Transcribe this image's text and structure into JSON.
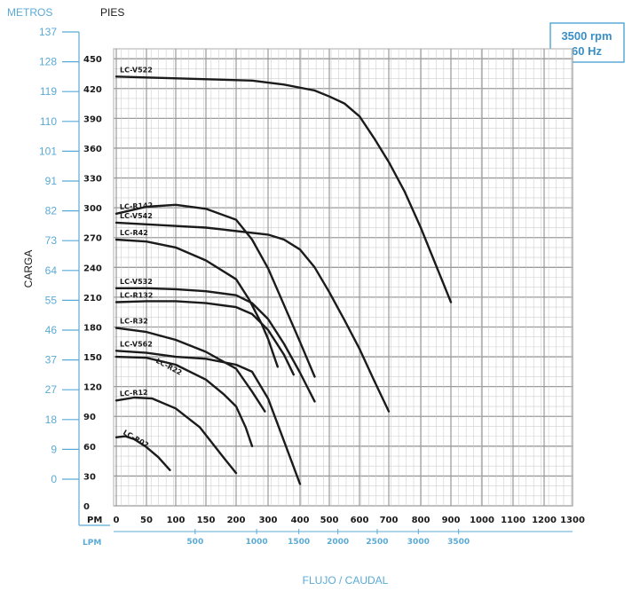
{
  "chart_data": {
    "type": "line",
    "title": "",
    "speed_box": {
      "line1": "3500 rpm",
      "line2": "60 Hz",
      "color": "#3a8fc5"
    },
    "y_axis_label": "CARGA",
    "x_axis_label": "FLUJO / CAUDAL",
    "meters_label": "METROS",
    "feet_label": "PIES",
    "gpm_label": "PM",
    "lpm_label": "LPM",
    "meters_ticks": [
      "137",
      "128",
      "119",
      "110",
      "101",
      "91",
      "82",
      "73",
      "64",
      "55",
      "46",
      "37",
      "27",
      "18",
      "9",
      "0"
    ],
    "feet_ticks": [
      0,
      30,
      60,
      90,
      120,
      150,
      180,
      210,
      240,
      270,
      300,
      330,
      360,
      390,
      420,
      450
    ],
    "gpm_ticks": [
      0,
      50,
      100,
      150,
      200,
      300,
      400,
      500,
      600,
      700,
      800,
      900,
      1000,
      1100,
      1200,
      1300
    ],
    "lpm_ticks": [
      500,
      1000,
      1500,
      2000,
      2500,
      3000,
      3500
    ],
    "grid": true,
    "colors": {
      "accent": "#5aaad6",
      "curve": "#1b1b1b",
      "grid": "#bdbdbd"
    },
    "series": [
      {
        "name": "LC-V522",
        "points": [
          [
            0,
            432
          ],
          [
            250,
            428
          ],
          [
            350,
            424
          ],
          [
            450,
            418
          ],
          [
            500,
            412
          ],
          [
            550,
            405
          ],
          [
            600,
            392
          ],
          [
            650,
            370
          ],
          [
            700,
            346
          ],
          [
            750,
            316
          ],
          [
            800,
            280
          ],
          [
            860,
            235
          ],
          [
            900,
            205
          ]
        ]
      },
      {
        "name": "LC-R142",
        "points": [
          [
            0,
            294
          ],
          [
            50,
            301
          ],
          [
            100,
            303
          ],
          [
            150,
            299
          ],
          [
            200,
            288
          ],
          [
            250,
            268
          ],
          [
            300,
            239
          ],
          [
            350,
            202
          ],
          [
            400,
            165
          ],
          [
            450,
            130
          ]
        ]
      },
      {
        "name": "LC-V542",
        "points": [
          [
            0,
            285
          ],
          [
            150,
            280
          ],
          [
            300,
            273
          ],
          [
            350,
            268
          ],
          [
            400,
            258
          ],
          [
            450,
            240
          ],
          [
            500,
            215
          ],
          [
            550,
            187
          ],
          [
            600,
            158
          ],
          [
            650,
            126
          ],
          [
            700,
            95
          ]
        ]
      },
      {
        "name": "LC-R42",
        "points": [
          [
            0,
            268
          ],
          [
            50,
            266
          ],
          [
            100,
            260
          ],
          [
            150,
            247
          ],
          [
            200,
            228
          ],
          [
            240,
            208
          ],
          [
            280,
            183
          ],
          [
            300,
            168
          ],
          [
            330,
            140
          ]
        ]
      },
      {
        "name": "LC-V532",
        "points": [
          [
            0,
            219
          ],
          [
            50,
            219
          ],
          [
            100,
            218
          ],
          [
            150,
            216
          ],
          [
            200,
            212
          ],
          [
            250,
            204
          ],
          [
            300,
            188
          ],
          [
            350,
            163
          ],
          [
            400,
            134
          ],
          [
            450,
            105
          ]
        ]
      },
      {
        "name": "LC-R132",
        "points": [
          [
            0,
            205
          ],
          [
            50,
            206
          ],
          [
            100,
            206
          ],
          [
            150,
            204
          ],
          [
            200,
            200
          ],
          [
            250,
            193
          ],
          [
            300,
            177
          ],
          [
            350,
            152
          ],
          [
            380,
            132
          ]
        ]
      },
      {
        "name": "LC-R32",
        "points": [
          [
            0,
            179
          ],
          [
            50,
            175
          ],
          [
            100,
            167
          ],
          [
            150,
            155
          ],
          [
            200,
            138
          ],
          [
            250,
            115
          ],
          [
            290,
            95
          ]
        ]
      },
      {
        "name": "LC-V562",
        "points": [
          [
            0,
            156
          ],
          [
            50,
            154
          ],
          [
            100,
            150
          ],
          [
            150,
            148
          ],
          [
            200,
            142
          ],
          [
            250,
            135
          ],
          [
            300,
            108
          ],
          [
            350,
            65
          ],
          [
            400,
            22
          ]
        ]
      },
      {
        "name": "LC-R22",
        "points": [
          [
            0,
            150
          ],
          [
            50,
            149
          ],
          [
            100,
            142
          ],
          [
            150,
            127
          ],
          [
            180,
            112
          ],
          [
            200,
            100
          ],
          [
            230,
            79
          ],
          [
            250,
            60
          ]
        ]
      },
      {
        "name": "LC-R12",
        "points": [
          [
            0,
            106
          ],
          [
            30,
            109
          ],
          [
            60,
            108
          ],
          [
            100,
            98
          ],
          [
            140,
            79
          ],
          [
            180,
            48
          ],
          [
            200,
            33
          ]
        ]
      },
      {
        "name": "LC-R02",
        "points": [
          [
            0,
            69
          ],
          [
            15,
            70
          ],
          [
            30,
            67
          ],
          [
            50,
            59
          ],
          [
            70,
            49
          ],
          [
            90,
            36
          ]
        ]
      }
    ]
  }
}
